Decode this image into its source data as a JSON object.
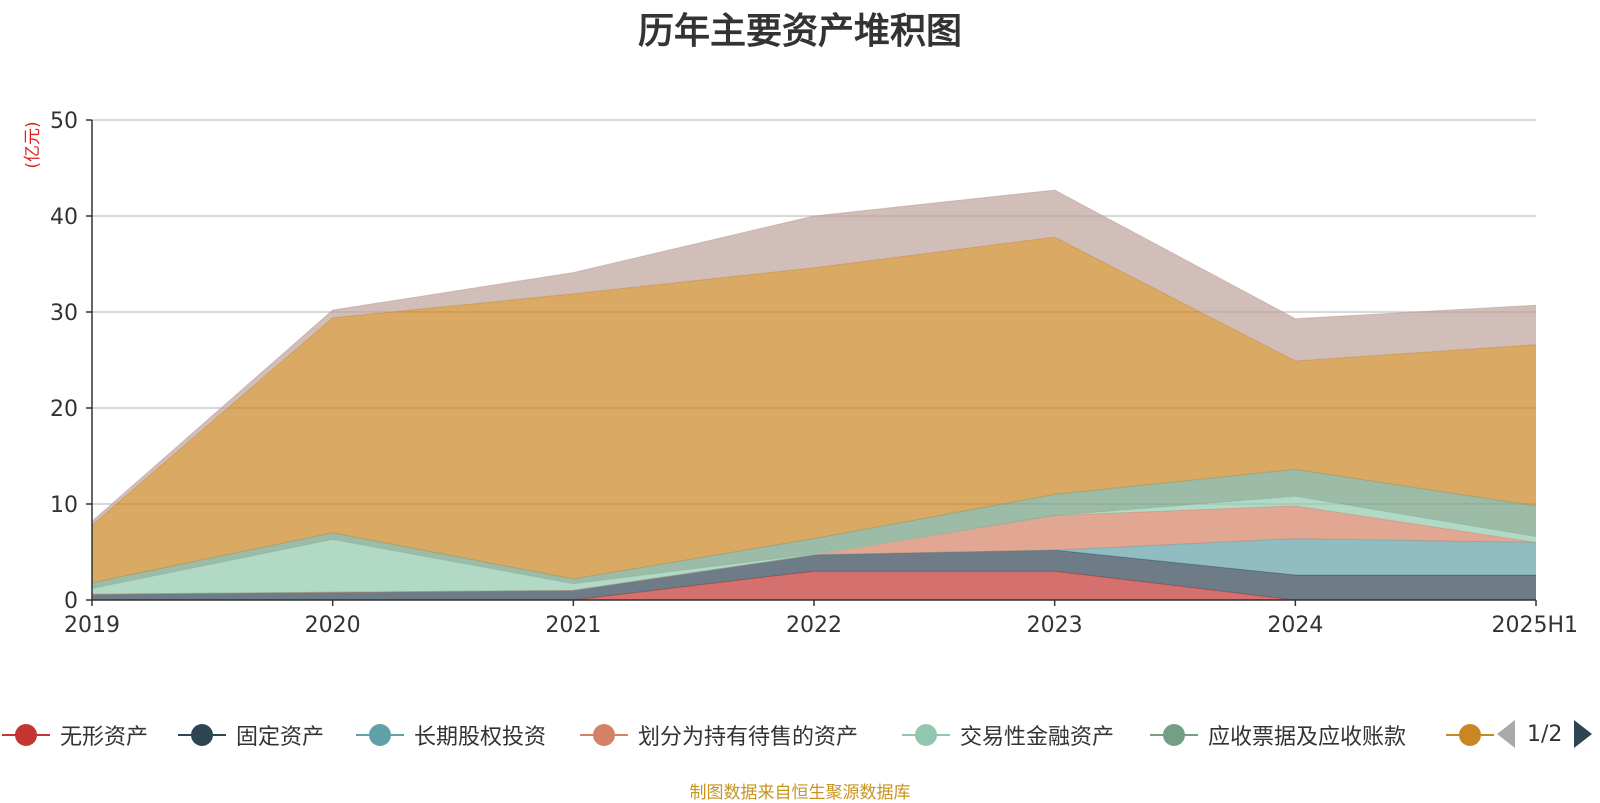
{
  "chart_data": {
    "type": "area",
    "stacked": true,
    "title": "历年主要资产堆积图",
    "ylabel": "(亿元)",
    "xlabel": "",
    "ylim": [
      0,
      50
    ],
    "yticks": [
      "0",
      "10",
      "20",
      "30",
      "40",
      "50"
    ],
    "categories": [
      "2019",
      "2020",
      "2021",
      "2022",
      "2023",
      "2024",
      "2025H1"
    ],
    "grid": true,
    "legend_position": "bottom",
    "series": [
      {
        "name": "无形资产",
        "color": "#c23531",
        "values": [
          0,
          0,
          0,
          3.0,
          3.0,
          0,
          0
        ]
      },
      {
        "name": "固定资产",
        "color": "#2f4554",
        "values": [
          0.6,
          0.8,
          1.0,
          1.7,
          2.2,
          2.6,
          2.6
        ]
      },
      {
        "name": "长期股权投资",
        "color": "#61a0a8",
        "values": [
          0,
          0,
          0,
          0,
          0,
          3.8,
          3.4
        ]
      },
      {
        "name": "划分为持有待售的资产",
        "color": "#d48265",
        "values": [
          0,
          0,
          0,
          0,
          3.6,
          3.4,
          0
        ]
      },
      {
        "name": "交易性金融资产",
        "color": "#91c7ae",
        "values": [
          0.6,
          5.5,
          0.7,
          0.1,
          0,
          1.0,
          0.6
        ]
      },
      {
        "name": "应收票据及应收账款",
        "color": "#749f83",
        "values": [
          0.6,
          0.7,
          0.5,
          1.6,
          2.2,
          2.8,
          3.2
        ]
      },
      {
        "name": "",
        "color": "#ca8622",
        "values": [
          6.0,
          22.4,
          29.7,
          28.2,
          26.8,
          11.3,
          16.8
        ]
      },
      {
        "name": "",
        "color": "#bda29a",
        "values": [
          0.4,
          0.8,
          2.2,
          5.4,
          4.9,
          4.4,
          4.1
        ]
      }
    ]
  },
  "legend": {
    "items": [
      {
        "label": "无形资产",
        "color": "#c23531"
      },
      {
        "label": "固定资产",
        "color": "#2f4554"
      },
      {
        "label": "长期股权投资",
        "color": "#61a0a8"
      },
      {
        "label": "划分为持有待售的资产",
        "color": "#d48265"
      },
      {
        "label": "交易性金融资产",
        "color": "#91c7ae"
      },
      {
        "label": "应收票据及应收账款",
        "color": "#749f83"
      },
      {
        "label": "",
        "color": "#ca8622"
      }
    ],
    "page": "1/2"
  },
  "source": "制图数据来自恒生聚源数据库"
}
